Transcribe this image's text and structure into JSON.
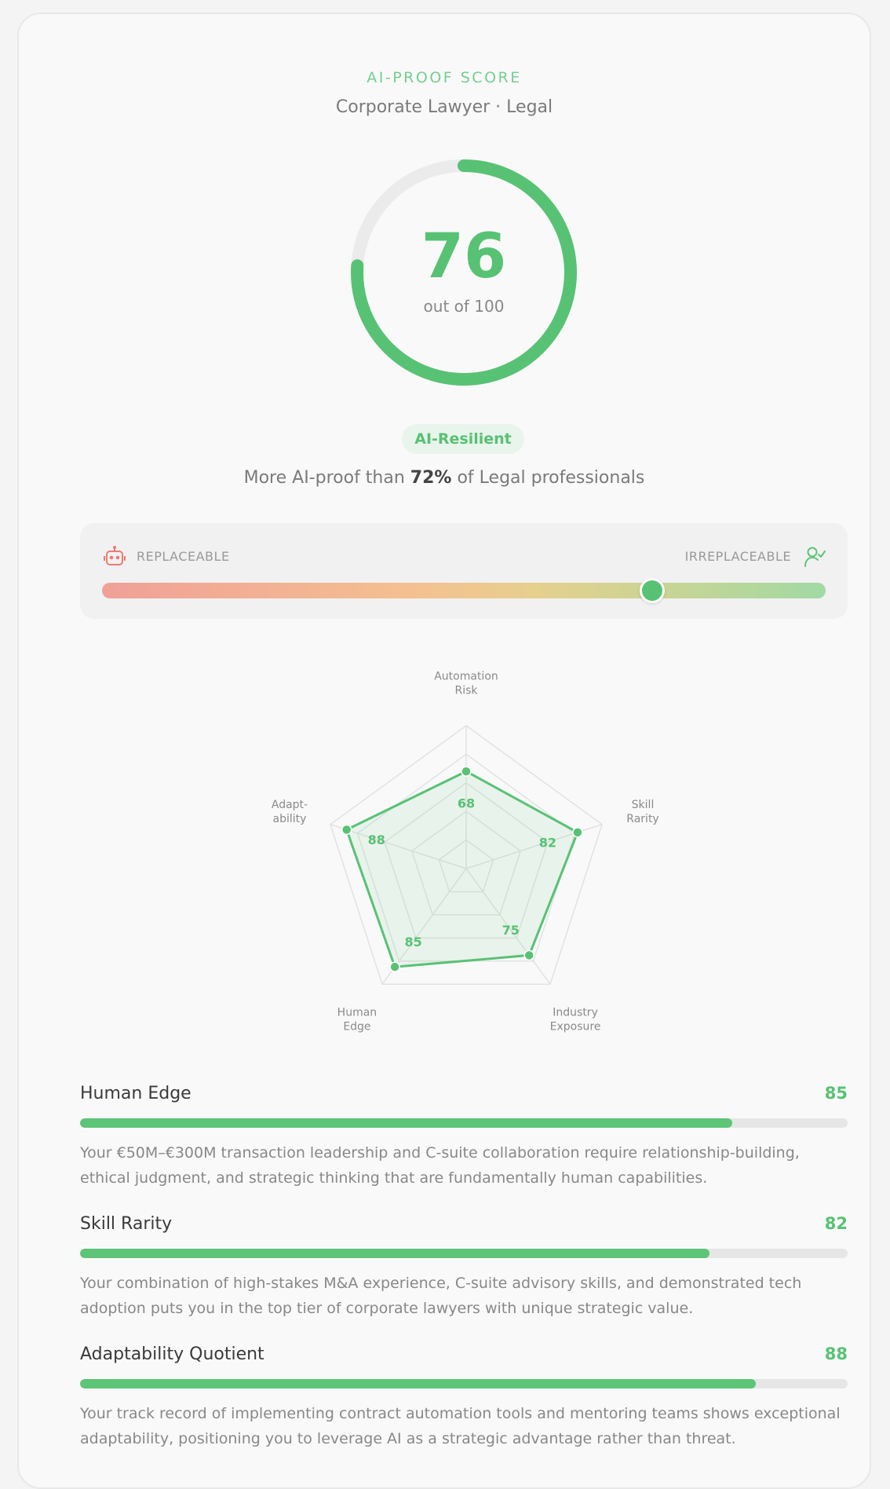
{
  "header": {
    "eyebrow": "AI-PROOF SCORE",
    "subtitle": "Corporate Lawyer · Legal"
  },
  "score": {
    "value": "76",
    "out_of": "out of 100",
    "fraction": 0.76,
    "color": "#58c274",
    "track_color": "#ebebeb"
  },
  "badge": {
    "label": "AI-Resilient"
  },
  "percentile": {
    "prefix": "More AI-proof than ",
    "value": "72%",
    "suffix": " of Legal professionals"
  },
  "spectrum": {
    "left_label": "REPLACEABLE",
    "right_label": "IRREPLACEABLE",
    "left_icon": "robot-icon",
    "right_icon": "user-check-icon",
    "position": 0.76
  },
  "radar": {
    "axes": [
      {
        "label_lines": [
          "Automation",
          "Risk"
        ],
        "value": 68
      },
      {
        "label_lines": [
          "Skill",
          "Rarity"
        ],
        "value": 82
      },
      {
        "label_lines": [
          "Industry",
          "Exposure"
        ],
        "value": 75
      },
      {
        "label_lines": [
          "Human",
          "Edge"
        ],
        "value": 85
      },
      {
        "label_lines": [
          "Adapt-",
          "ability"
        ],
        "value": 88
      }
    ],
    "max": 100,
    "color": "#58c274"
  },
  "metrics": [
    {
      "title": "Human Edge",
      "score": "85",
      "value": 85,
      "description": "Your €50M–€300M transaction leadership and C-suite collaboration require relationship-building, ethical judgment, and strategic thinking that are fundamentally human capabilities."
    },
    {
      "title": "Skill Rarity",
      "score": "82",
      "value": 82,
      "description": "Your combination of high-stakes M&A experience, C-suite advisory skills, and demonstrated tech adoption puts you in the top tier of corporate lawyers with unique strategic value."
    },
    {
      "title": "Adaptability Quotient",
      "score": "88",
      "value": 88,
      "description": "Your track record of implementing contract automation tools and mentoring teams shows exceptional adaptability, positioning you to leverage AI as a strategic advantage rather than threat."
    }
  ]
}
